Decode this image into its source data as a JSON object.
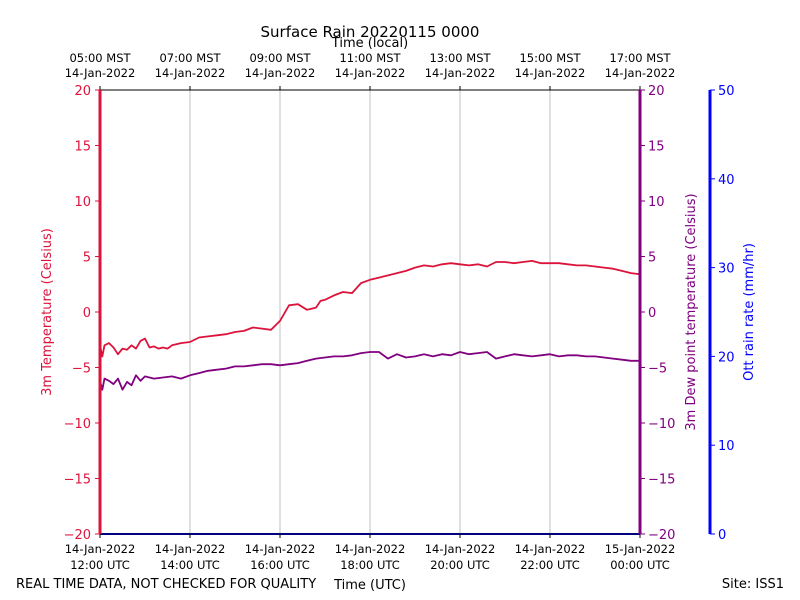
{
  "chart_data": {
    "type": "line",
    "title": "Surface Rain 20220115 0000",
    "top_axis_label": "Time (local)",
    "bottom_axis_label": "Time (UTC)",
    "footer_left": "REAL TIME DATA, NOT CHECKED FOR QUALITY",
    "footer_right": "Site: ISS1",
    "x_range_hours": [
      12,
      24
    ],
    "x_ticks_hours": [
      12,
      14,
      16,
      18,
      20,
      22,
      24
    ],
    "x_ticks_local": [
      [
        "05:00 MST",
        "14-Jan-2022"
      ],
      [
        "07:00 MST",
        "14-Jan-2022"
      ],
      [
        "09:00 MST",
        "14-Jan-2022"
      ],
      [
        "11:00 MST",
        "14-Jan-2022"
      ],
      [
        "13:00 MST",
        "14-Jan-2022"
      ],
      [
        "15:00 MST",
        "14-Jan-2022"
      ],
      [
        "17:00 MST",
        "14-Jan-2022"
      ]
    ],
    "x_ticks_utc": [
      [
        "14-Jan-2022",
        "12:00 UTC"
      ],
      [
        "14-Jan-2022",
        "14:00 UTC"
      ],
      [
        "14-Jan-2022",
        "16:00 UTC"
      ],
      [
        "14-Jan-2022",
        "18:00 UTC"
      ],
      [
        "14-Jan-2022",
        "20:00 UTC"
      ],
      [
        "14-Jan-2022",
        "22:00 UTC"
      ],
      [
        "15-Jan-2022",
        "00:00 UTC"
      ]
    ],
    "left_axis": {
      "label": "3m Temperature (Celsius)",
      "ylim": [
        -20,
        20
      ],
      "ticks": [
        20,
        15,
        10,
        5,
        0,
        -5,
        -10,
        -15,
        -20
      ],
      "tick_labels": [
        "20",
        "15",
        "10",
        "5",
        "0",
        "−5",
        "−10",
        "−15",
        "−20"
      ],
      "color": "#dc143c"
    },
    "right_axis_1": {
      "label": "3m Dew point temperature (Celsius)",
      "ylim": [
        -20,
        20
      ],
      "ticks": [
        20,
        15,
        10,
        5,
        0,
        -5,
        -10,
        -15,
        -20
      ],
      "tick_labels": [
        "20",
        "15",
        "10",
        "5",
        "0",
        "−5",
        "−10",
        "−15",
        "−20"
      ],
      "color": "#800080"
    },
    "right_axis_2": {
      "label": "Ott rain rate (mm/hr)",
      "ylim": [
        0,
        50
      ],
      "ticks": [
        50,
        40,
        30,
        20,
        10,
        0
      ],
      "tick_labels": [
        "50",
        "40",
        "30",
        "20",
        "10",
        "0"
      ],
      "color": "#0000ff"
    },
    "series": [
      {
        "name": "3m Temperature",
        "axis": "left",
        "color": "#dc143c",
        "x": [
          12.0,
          12.05,
          12.1,
          12.2,
          12.3,
          12.4,
          12.5,
          12.6,
          12.7,
          12.8,
          12.9,
          13.0,
          13.1,
          13.2,
          13.3,
          13.4,
          13.5,
          13.6,
          13.8,
          14.0,
          14.2,
          14.4,
          14.6,
          14.8,
          15.0,
          15.2,
          15.4,
          15.6,
          15.8,
          16.0,
          16.2,
          16.4,
          16.6,
          16.7,
          16.8,
          16.9,
          17.0,
          17.2,
          17.4,
          17.6,
          17.8,
          18.0,
          18.2,
          18.4,
          18.6,
          18.8,
          19.0,
          19.2,
          19.4,
          19.6,
          19.8,
          20.0,
          20.2,
          20.4,
          20.6,
          20.8,
          21.0,
          21.2,
          21.4,
          21.6,
          21.8,
          22.0,
          22.2,
          22.4,
          22.6,
          22.8,
          23.0,
          23.2,
          23.4,
          23.6,
          23.8,
          24.0
        ],
        "y": [
          -3.0,
          -4.0,
          -3.0,
          -2.8,
          -3.2,
          -3.8,
          -3.3,
          -3.4,
          -3.0,
          -3.3,
          -2.6,
          -2.4,
          -3.2,
          -3.1,
          -3.3,
          -3.2,
          -3.3,
          -3.0,
          -2.8,
          -2.7,
          -2.3,
          -2.2,
          -2.1,
          -2.0,
          -1.8,
          -1.7,
          -1.4,
          -1.5,
          -1.6,
          -0.8,
          0.6,
          0.7,
          0.2,
          0.3,
          0.4,
          1.0,
          1.1,
          1.5,
          1.8,
          1.7,
          2.6,
          2.9,
          3.1,
          3.3,
          3.5,
          3.7,
          4.0,
          4.2,
          4.1,
          4.3,
          4.4,
          4.3,
          4.2,
          4.3,
          4.1,
          4.5,
          4.5,
          4.4,
          4.5,
          4.6,
          4.4,
          4.4,
          4.4,
          4.3,
          4.2,
          4.2,
          4.1,
          4.0,
          3.9,
          3.7,
          3.5,
          3.4
        ]
      },
      {
        "name": "3m Dew point temperature",
        "axis": "right_1",
        "color": "#800080",
        "x": [
          12.0,
          12.05,
          12.1,
          12.2,
          12.3,
          12.4,
          12.5,
          12.6,
          12.7,
          12.8,
          12.9,
          13.0,
          13.2,
          13.4,
          13.6,
          13.8,
          14.0,
          14.2,
          14.4,
          14.6,
          14.8,
          15.0,
          15.2,
          15.4,
          15.6,
          15.8,
          16.0,
          16.2,
          16.4,
          16.6,
          16.8,
          17.0,
          17.2,
          17.4,
          17.6,
          17.8,
          18.0,
          18.2,
          18.4,
          18.6,
          18.8,
          19.0,
          19.2,
          19.4,
          19.6,
          19.8,
          20.0,
          20.2,
          20.4,
          20.6,
          20.8,
          21.0,
          21.2,
          21.4,
          21.6,
          21.8,
          22.0,
          22.2,
          22.4,
          22.6,
          22.8,
          23.0,
          23.2,
          23.4,
          23.6,
          23.8,
          24.0
        ],
        "y": [
          -6.2,
          -7.0,
          -6.0,
          -6.2,
          -6.5,
          -6.0,
          -7.0,
          -6.3,
          -6.6,
          -5.7,
          -6.2,
          -5.8,
          -6.0,
          -5.9,
          -5.8,
          -6.0,
          -5.7,
          -5.5,
          -5.3,
          -5.2,
          -5.1,
          -4.9,
          -4.9,
          -4.8,
          -4.7,
          -4.7,
          -4.8,
          -4.7,
          -4.6,
          -4.4,
          -4.2,
          -4.1,
          -4.0,
          -4.0,
          -3.9,
          -3.7,
          -3.6,
          -3.6,
          -4.2,
          -3.8,
          -4.1,
          -4.0,
          -3.8,
          -4.0,
          -3.8,
          -3.9,
          -3.6,
          -3.8,
          -3.7,
          -3.6,
          -4.2,
          -4.0,
          -3.8,
          -3.9,
          -4.0,
          -3.9,
          -3.8,
          -4.0,
          -3.9,
          -3.9,
          -4.0,
          -4.0,
          -4.1,
          -4.2,
          -4.3,
          -4.4,
          -4.4
        ]
      },
      {
        "name": "Ott rain rate",
        "axis": "right_2",
        "color": "#0000ff",
        "x": [
          12.0,
          24.0
        ],
        "y": [
          0,
          0
        ]
      }
    ]
  }
}
